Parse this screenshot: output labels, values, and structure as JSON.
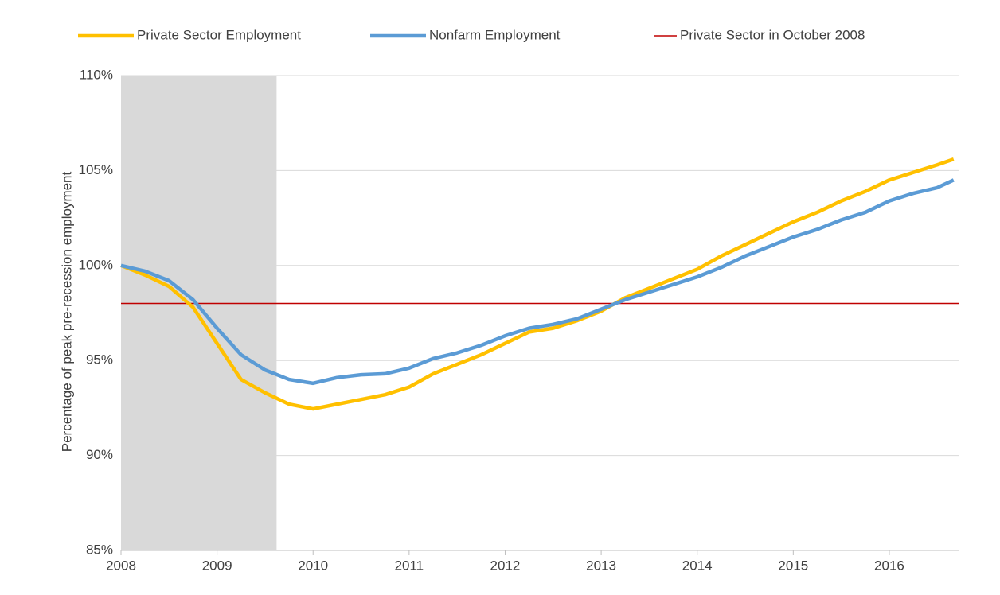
{
  "chart_data": {
    "type": "line",
    "y_label": "Percentage of peak pre-recession employment",
    "x": [
      2008.0,
      2008.25,
      2008.5,
      2008.75,
      2009.0,
      2009.25,
      2009.5,
      2009.75,
      2010.0,
      2010.25,
      2010.5,
      2010.75,
      2011.0,
      2011.25,
      2011.5,
      2011.75,
      2012.0,
      2012.25,
      2012.5,
      2012.75,
      2013.0,
      2013.25,
      2013.5,
      2013.75,
      2014.0,
      2014.25,
      2014.5,
      2014.75,
      2015.0,
      2015.25,
      2015.5,
      2015.75,
      2016.0,
      2016.25,
      2016.5,
      2016.67
    ],
    "series": [
      {
        "name": "Private Sector Employment",
        "color": "#ffc000",
        "values": [
          100.0,
          99.5,
          98.9,
          97.8,
          95.9,
          94.0,
          93.3,
          92.7,
          92.45,
          92.7,
          92.95,
          93.2,
          93.6,
          94.3,
          94.8,
          95.3,
          95.9,
          96.5,
          96.7,
          97.1,
          97.6,
          98.3,
          98.8,
          99.3,
          99.8,
          100.5,
          101.1,
          101.7,
          102.3,
          102.8,
          103.4,
          103.9,
          104.5,
          104.9,
          105.3,
          105.6
        ]
      },
      {
        "name": "Nonfarm Employment",
        "color": "#5b9bd5",
        "values": [
          100.0,
          99.7,
          99.2,
          98.2,
          96.7,
          95.3,
          94.5,
          94.0,
          93.8,
          94.1,
          94.25,
          94.3,
          94.6,
          95.1,
          95.4,
          95.8,
          96.3,
          96.7,
          96.9,
          97.2,
          97.7,
          98.2,
          98.6,
          99.0,
          99.4,
          99.9,
          100.5,
          101.0,
          101.5,
          101.9,
          102.4,
          102.8,
          103.4,
          103.8,
          104.1,
          104.5
        ]
      }
    ],
    "reference_line": {
      "name": "Private Sector in October 2008",
      "value": 98,
      "color": "#c00000"
    },
    "shaded_region": {
      "xlim": [
        2008,
        2009.62
      ],
      "color": "#d9d9d9"
    },
    "xlim": [
      2008,
      2016.73
    ],
    "xticks": [
      2008,
      2009,
      2010,
      2011,
      2012,
      2013,
      2014,
      2015,
      2016
    ],
    "ylim": [
      85,
      110
    ],
    "yticks": [
      {
        "value": 85,
        "label": "85%"
      },
      {
        "value": 90,
        "label": "90%"
      },
      {
        "value": 95,
        "label": "95%"
      },
      {
        "value": 100,
        "label": "100%"
      },
      {
        "value": 105,
        "label": "105%"
      },
      {
        "value": 110,
        "label": "110%"
      }
    ],
    "grid": true,
    "legend": "top"
  }
}
